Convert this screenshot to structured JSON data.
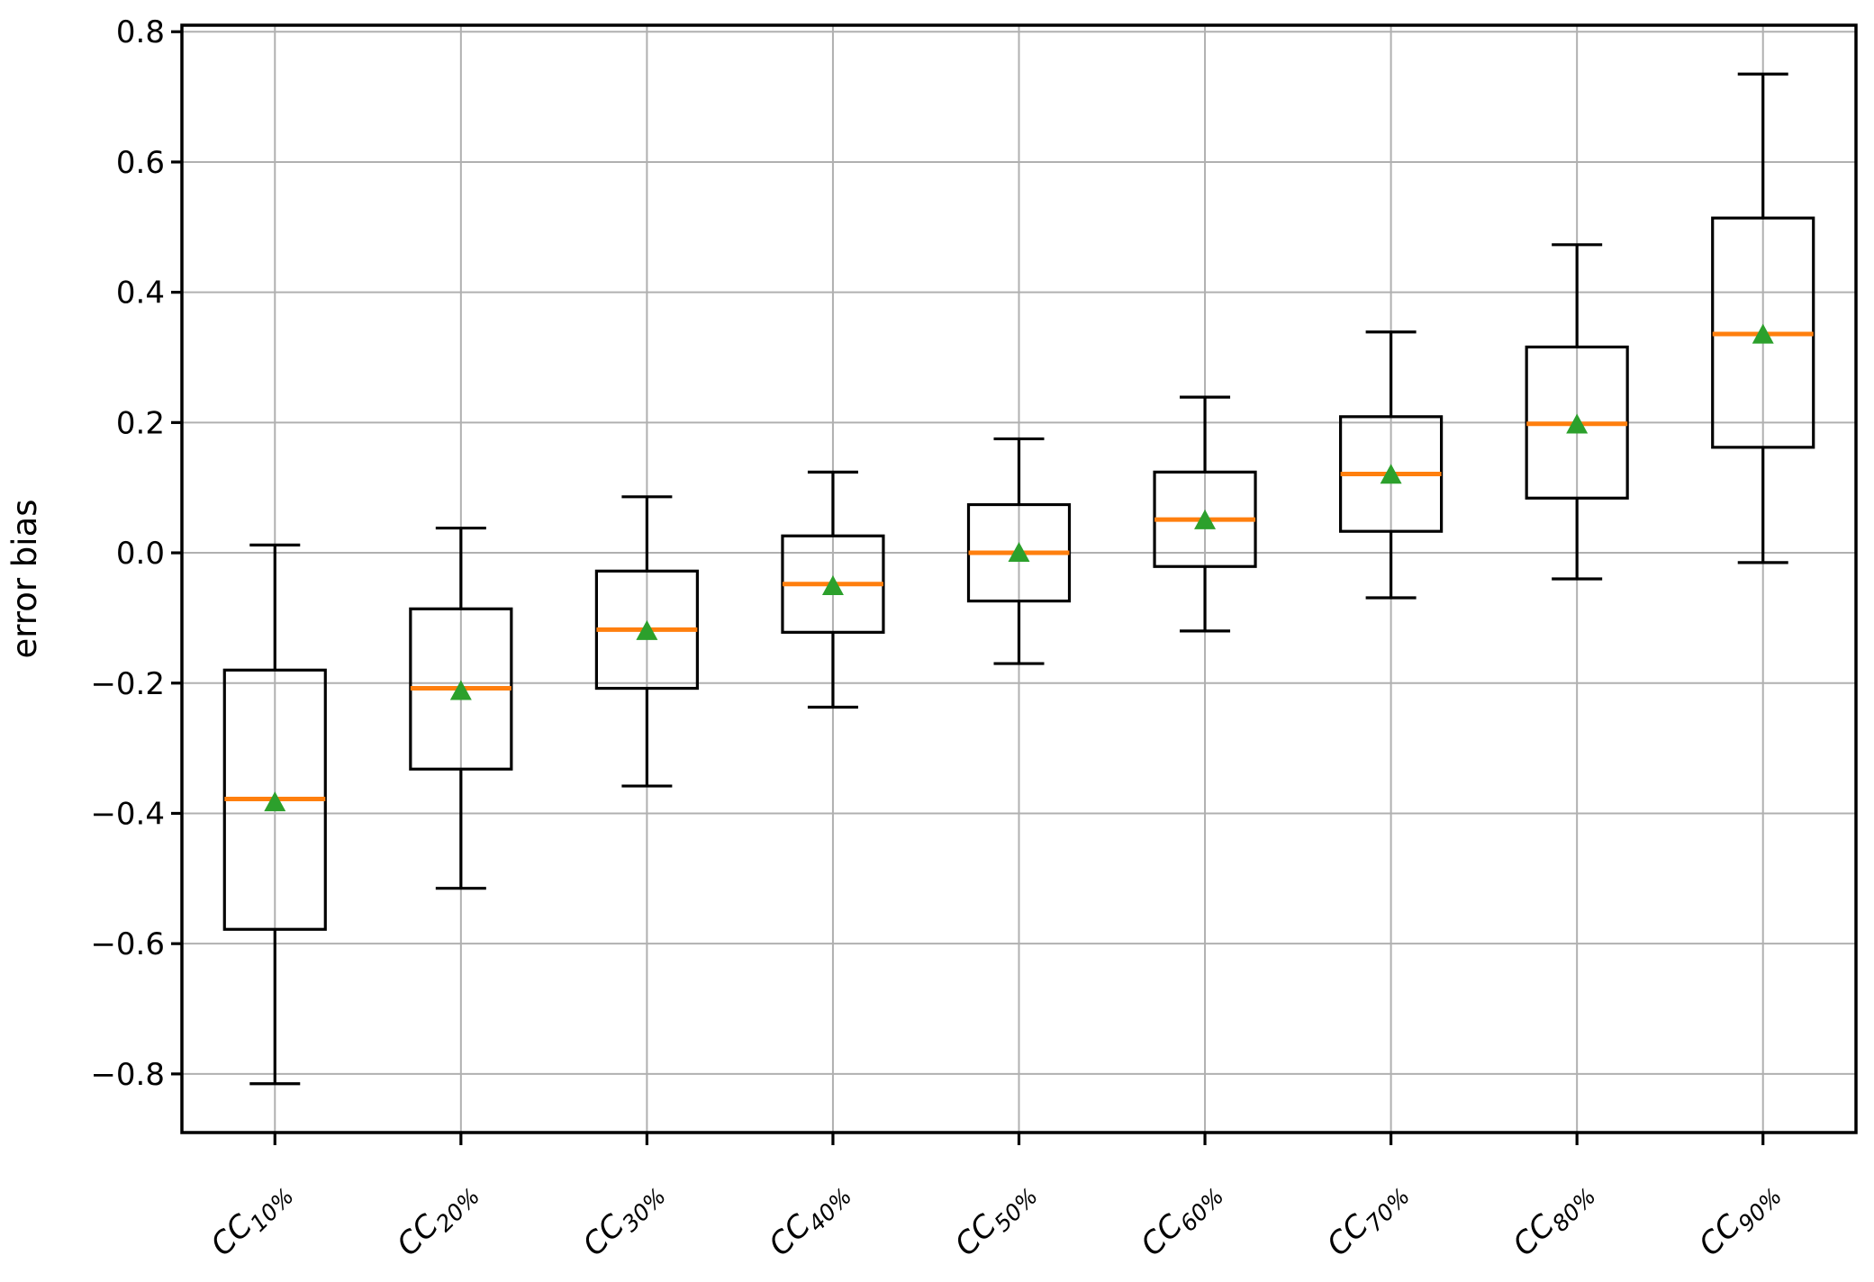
{
  "chart_data": {
    "type": "boxplot",
    "title": "",
    "xlabel": "",
    "ylabel": "error bias",
    "grid": true,
    "legend_position": "none",
    "ylim": [
      -0.89,
      0.81
    ],
    "yticks": [
      0.8,
      0.6,
      0.4,
      0.2,
      0.0,
      -0.2,
      -0.4,
      -0.6,
      -0.8
    ],
    "ytick_labels": [
      "0.8",
      "0.6",
      "0.4",
      "0.2",
      "0.0",
      "−0.2",
      "−0.4",
      "−0.6",
      "−0.8"
    ],
    "categories": [
      {
        "base": "CC",
        "sub": "10%"
      },
      {
        "base": "CC",
        "sub": "20%"
      },
      {
        "base": "CC",
        "sub": "30%"
      },
      {
        "base": "CC",
        "sub": "40%"
      },
      {
        "base": "CC",
        "sub": "50%"
      },
      {
        "base": "CC",
        "sub": "60%"
      },
      {
        "base": "CC",
        "sub": "70%"
      },
      {
        "base": "CC",
        "sub": "80%"
      },
      {
        "base": "CC",
        "sub": "90%"
      }
    ],
    "boxes": [
      {
        "label": "CC_10%",
        "whislo": -0.815,
        "q1": -0.578,
        "med": -0.378,
        "mean": -0.383,
        "q3": -0.18,
        "whishi": 0.012
      },
      {
        "label": "CC_20%",
        "whislo": -0.515,
        "q1": -0.332,
        "med": -0.208,
        "mean": -0.212,
        "q3": -0.086,
        "whishi": 0.038
      },
      {
        "label": "CC_30%",
        "whislo": -0.358,
        "q1": -0.208,
        "med": -0.118,
        "mean": -0.12,
        "q3": -0.028,
        "whishi": 0.086
      },
      {
        "label": "CC_40%",
        "whislo": -0.237,
        "q1": -0.122,
        "med": -0.048,
        "mean": -0.051,
        "q3": 0.026,
        "whishi": 0.124
      },
      {
        "label": "CC_50%",
        "whislo": -0.17,
        "q1": -0.074,
        "med": 0.0,
        "mean": 0.0,
        "q3": 0.074,
        "whishi": 0.175
      },
      {
        "label": "CC_60%",
        "whislo": -0.12,
        "q1": -0.021,
        "med": 0.051,
        "mean": 0.05,
        "q3": 0.124,
        "whishi": 0.239
      },
      {
        "label": "CC_70%",
        "whislo": -0.069,
        "q1": 0.033,
        "med": 0.121,
        "mean": 0.12,
        "q3": 0.209,
        "whishi": 0.339
      },
      {
        "label": "CC_80%",
        "whislo": -0.04,
        "q1": 0.084,
        "med": 0.198,
        "mean": 0.197,
        "q3": 0.316,
        "whishi": 0.473
      },
      {
        "label": "CC_90%",
        "whislo": -0.015,
        "q1": 0.162,
        "med": 0.336,
        "mean": 0.335,
        "q3": 0.514,
        "whishi": 0.735
      }
    ],
    "mean_marker_shape": "triangle-up",
    "colors": {
      "box_edge": "#000000",
      "whisker": "#000000",
      "median": "#ff7f0e",
      "mean_marker": "#2ca02c",
      "grid": "#b0b0b0",
      "spine": "#000000",
      "tick_text": "#000000",
      "background": "#ffffff"
    }
  }
}
